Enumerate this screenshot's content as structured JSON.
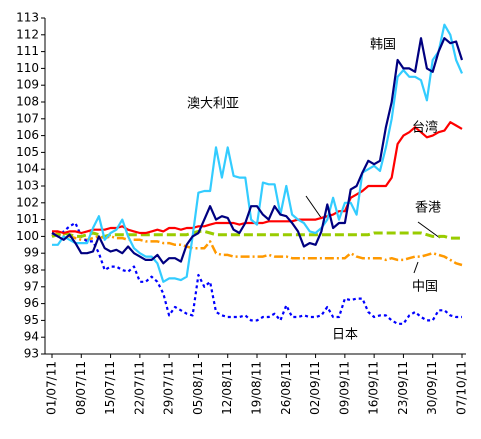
{
  "chart_data": {
    "type": "line",
    "categories": [
      "01/07/11",
      null,
      null,
      null,
      null,
      "08/07/11",
      null,
      null,
      null,
      null,
      "15/07/11",
      null,
      null,
      null,
      null,
      "22/07/11",
      null,
      null,
      null,
      null,
      "29/07/11",
      null,
      null,
      null,
      null,
      "05/08/11",
      null,
      null,
      null,
      null,
      "12/08/11",
      null,
      null,
      null,
      null,
      "19/08/11",
      null,
      null,
      null,
      null,
      "26/08/11",
      null,
      null,
      null,
      null,
      "02/09/11",
      null,
      null,
      null,
      null,
      "09/09/11",
      null,
      null,
      null,
      null,
      "16/09/11",
      null,
      null,
      null,
      null,
      "23/09/11",
      null,
      null,
      null,
      null,
      "30/09/11",
      null,
      null,
      null,
      null,
      "07/10/11"
    ],
    "series": [
      {
        "name": "韩国",
        "color": "#000080",
        "linestyle": "solid",
        "values": [
          100.2,
          100.0,
          99.8,
          100.1,
          99.6,
          99.0,
          99.0,
          99.1,
          100.0,
          99.3,
          99.1,
          99.2,
          99.0,
          99.4,
          99.0,
          98.8,
          98.6,
          98.6,
          98.9,
          98.4,
          98.7,
          98.7,
          98.5,
          99.5,
          100.0,
          100.2,
          101.0,
          101.8,
          101.0,
          101.2,
          101.1,
          100.4,
          100.2,
          100.8,
          101.8,
          101.8,
          101.3,
          101.0,
          101.8,
          101.3,
          101.2,
          100.8,
          100.3,
          99.4,
          99.6,
          99.5,
          100.3,
          101.9,
          100.5,
          100.8,
          100.8,
          102.8,
          103.0,
          103.8,
          104.5,
          104.3,
          104.5,
          106.5,
          108.0,
          110.5,
          110.0,
          110.0,
          109.8,
          111.8,
          110.0,
          109.8,
          111.0,
          111.8,
          111.5,
          111.6,
          110.5
        ]
      },
      {
        "name": "台湾",
        "color": "#ff0000",
        "linestyle": "solid",
        "values": [
          100.3,
          100.3,
          100.2,
          100.3,
          100.3,
          100.2,
          100.3,
          100.4,
          100.4,
          100.4,
          100.5,
          100.5,
          100.6,
          100.4,
          100.3,
          100.2,
          100.2,
          100.3,
          100.4,
          100.3,
          100.5,
          100.5,
          100.4,
          100.5,
          100.5,
          100.6,
          100.6,
          100.7,
          100.8,
          100.8,
          100.8,
          100.8,
          100.7,
          100.8,
          100.8,
          100.8,
          100.8,
          100.9,
          100.9,
          100.9,
          100.9,
          100.9,
          101.0,
          101.0,
          101.0,
          101.0,
          101.1,
          101.2,
          101.3,
          101.5,
          101.5,
          102.3,
          102.5,
          102.7,
          103.0,
          103.0,
          103.0,
          103.0,
          103.5,
          105.5,
          106.0,
          106.2,
          106.5,
          106.2,
          105.9,
          106.0,
          106.2,
          106.3,
          106.8,
          106.6,
          106.4
        ]
      },
      {
        "name": "澳大利亚",
        "color": "#33ccff",
        "linestyle": "solid",
        "values": [
          99.5,
          99.5,
          100.0,
          99.8,
          99.6,
          99.6,
          99.6,
          100.5,
          101.2,
          99.8,
          100.2,
          100.4,
          101.0,
          100.0,
          99.3,
          99.0,
          98.8,
          98.8,
          98.4,
          97.3,
          97.5,
          97.5,
          97.4,
          97.6,
          100.0,
          102.6,
          102.7,
          102.7,
          105.3,
          103.5,
          105.3,
          103.6,
          103.5,
          103.5,
          101.0,
          100.7,
          103.2,
          103.1,
          103.1,
          101.3,
          103.0,
          101.3,
          101.0,
          100.8,
          100.3,
          100.2,
          100.5,
          101.0,
          102.3,
          101.0,
          102.0,
          102.0,
          101.3,
          103.8,
          104.0,
          104.2,
          103.9,
          105.3,
          107.0,
          109.5,
          109.9,
          109.5,
          109.5,
          109.3,
          108.1,
          110.5,
          111.0,
          112.6,
          112.0,
          110.5,
          109.7
        ]
      },
      {
        "name": "香港",
        "color": "#99cc00",
        "linestyle": "dashed",
        "values": [
          100.0,
          100.1,
          100.2,
          100.1,
          100.0,
          100.0,
          100.1,
          100.2,
          100.1,
          100.0,
          100.1,
          100.1,
          100.1,
          100.1,
          100.1,
          100.1,
          100.1,
          100.1,
          100.1,
          100.1,
          100.1,
          100.1,
          100.1,
          100.1,
          100.2,
          100.3,
          100.3,
          100.2,
          100.1,
          100.1,
          100.1,
          100.1,
          100.1,
          100.1,
          100.1,
          100.1,
          100.1,
          100.1,
          100.1,
          100.1,
          100.1,
          100.1,
          100.1,
          100.1,
          100.1,
          100.1,
          100.1,
          100.1,
          100.1,
          100.1,
          100.1,
          100.1,
          100.1,
          100.1,
          100.1,
          100.2,
          100.2,
          100.2,
          100.2,
          100.2,
          100.2,
          100.2,
          100.2,
          100.2,
          100.1,
          100.0,
          100.0,
          100.0,
          99.9,
          99.9,
          99.9
        ]
      },
      {
        "name": "中国",
        "color": "#ff9900",
        "linestyle": "dashdot",
        "values": [
          100.0,
          100.2,
          100.1,
          100.0,
          99.9,
          99.8,
          99.8,
          99.9,
          100.0,
          99.9,
          100.0,
          99.9,
          99.9,
          99.8,
          99.8,
          99.8,
          99.7,
          99.7,
          99.7,
          99.6,
          99.6,
          99.5,
          99.5,
          99.4,
          99.3,
          99.3,
          99.3,
          99.7,
          99.0,
          98.9,
          98.9,
          98.8,
          98.8,
          98.8,
          98.8,
          98.8,
          98.8,
          98.9,
          98.8,
          98.8,
          98.8,
          98.7,
          98.7,
          98.7,
          98.7,
          98.7,
          98.7,
          98.7,
          98.7,
          98.7,
          98.7,
          99.0,
          98.8,
          98.7,
          98.7,
          98.7,
          98.7,
          98.6,
          98.7,
          98.6,
          98.6,
          98.7,
          98.8,
          98.8,
          98.9,
          99.0,
          98.9,
          98.8,
          98.6,
          98.4,
          98.3
        ]
      },
      {
        "name": "日本",
        "color": "#0000ff",
        "linestyle": "dotted",
        "values": [
          100.2,
          100.0,
          100.3,
          100.6,
          100.8,
          100.0,
          99.7,
          99.7,
          99.0,
          98.0,
          98.2,
          98.2,
          98.0,
          97.9,
          98.2,
          97.3,
          97.3,
          97.6,
          97.3,
          96.6,
          95.3,
          95.8,
          95.6,
          95.4,
          95.3,
          97.7,
          97.0,
          97.3,
          95.5,
          95.3,
          95.2,
          95.2,
          95.2,
          95.3,
          95.0,
          95.0,
          95.2,
          95.2,
          95.4,
          95.0,
          95.9,
          95.2,
          95.2,
          95.3,
          95.2,
          95.2,
          95.3,
          95.8,
          95.2,
          95.2,
          96.3,
          96.2,
          96.3,
          96.3,
          95.5,
          95.2,
          95.3,
          95.3,
          95.0,
          94.8,
          94.8,
          95.3,
          95.5,
          95.2,
          95.0,
          95.0,
          95.6,
          95.6,
          95.3,
          95.2,
          95.2
        ]
      }
    ],
    "ylim": [
      93,
      113
    ],
    "yticks": [
      93,
      94,
      95,
      96,
      97,
      98,
      99,
      100,
      101,
      102,
      103,
      104,
      105,
      106,
      107,
      108,
      109,
      110,
      111,
      112,
      113
    ],
    "grid": false
  }
}
